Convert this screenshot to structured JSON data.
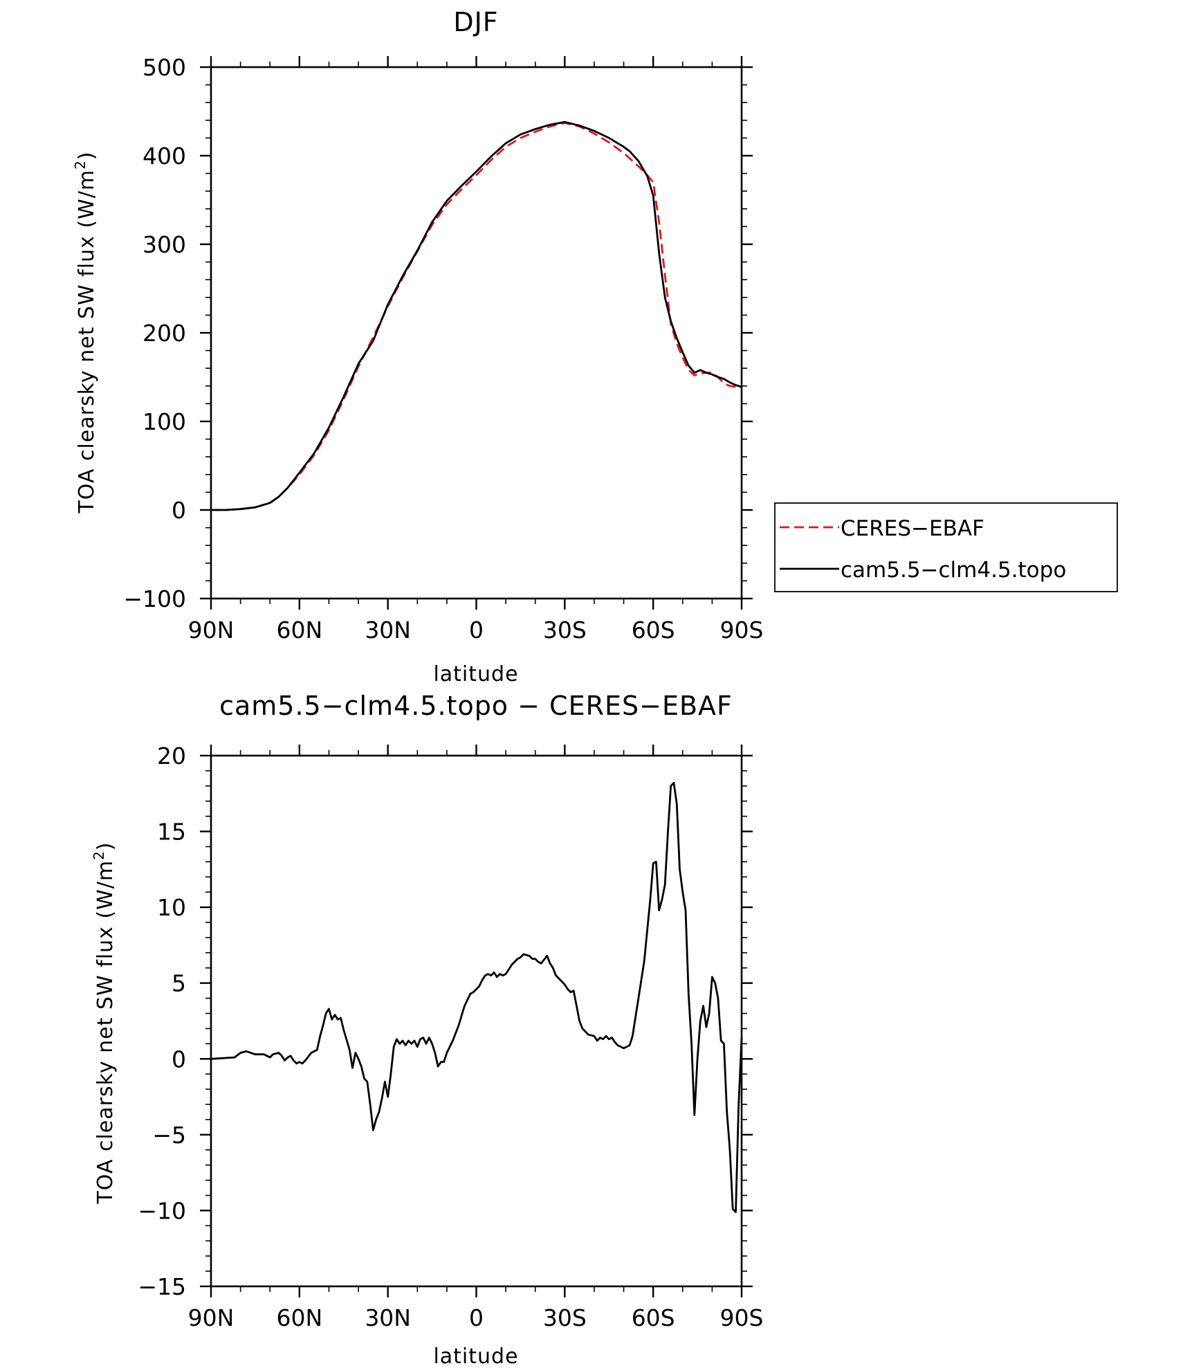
{
  "chart_data": [
    {
      "type": "line",
      "title": "DJF",
      "xlabel": "latitude",
      "ylabel": "TOA clearsky net SW flux (W/m",
      "ylabel_sup": "2",
      "ylabel_close": ")",
      "xlim": [
        90,
        -90
      ],
      "ylim": [
        -100,
        500
      ],
      "x_ticks": [
        90,
        60,
        30,
        0,
        -30,
        -60,
        -90
      ],
      "x_tick_labels": [
        "90N",
        "60N",
        "30N",
        "0",
        "30S",
        "60S",
        "90S"
      ],
      "y_ticks": [
        -100,
        0,
        100,
        200,
        300,
        400,
        500
      ],
      "y_tick_labels": [
        "−100",
        "0",
        "100",
        "200",
        "300",
        "400",
        "500"
      ],
      "legend": {
        "position": "right",
        "entries": [
          "CERES−EBAF",
          "cam5.5−clm4.5.topo"
        ]
      },
      "series": [
        {
          "name": "CERES-EBAF",
          "color": "#e8141c",
          "dash": "dashed",
          "x": [
            90,
            85,
            80,
            75,
            70,
            67,
            64,
            60,
            55,
            50,
            45,
            40,
            35,
            30,
            25,
            20,
            15,
            10,
            5,
            0,
            -5,
            -10,
            -15,
            -20,
            -25,
            -30,
            -35,
            -40,
            -45,
            -50,
            -52,
            -55,
            -58,
            -60,
            -62,
            -64,
            -66,
            -68,
            -70,
            -72,
            -74,
            -76,
            -78,
            -80,
            -82,
            -84,
            -86,
            -88,
            -90
          ],
          "y": [
            0,
            0,
            1,
            3,
            8,
            15,
            25,
            40,
            62,
            90,
            125,
            162,
            195,
            230,
            262,
            292,
            322,
            345,
            362,
            378,
            395,
            410,
            420,
            427,
            433,
            437,
            433,
            425,
            415,
            403,
            397,
            388,
            378,
            370,
            325,
            265,
            210,
            188,
            172,
            158,
            152,
            154,
            155,
            155,
            150,
            143,
            140,
            139,
            139
          ]
        },
        {
          "name": "cam5.5-clm4.5.topo",
          "color": "#000000",
          "dash": "solid",
          "x": [
            90,
            85,
            80,
            75,
            70,
            67,
            64,
            60,
            55,
            50,
            45,
            40,
            35,
            30,
            25,
            20,
            15,
            10,
            5,
            0,
            -5,
            -10,
            -15,
            -20,
            -25,
            -30,
            -35,
            -40,
            -45,
            -50,
            -52,
            -55,
            -58,
            -60,
            -62,
            -64,
            -66,
            -68,
            -70,
            -72,
            -74,
            -76,
            -78,
            -80,
            -82,
            -84,
            -86,
            -88,
            -90
          ],
          "y": [
            0,
            0,
            1,
            3,
            8,
            15,
            25,
            42,
            64,
            93,
            128,
            165,
            191,
            232,
            264,
            293,
            325,
            349,
            366,
            382,
            399,
            414,
            424,
            430,
            435,
            438,
            434,
            428,
            420,
            410,
            405,
            394,
            377,
            355,
            290,
            240,
            213,
            194,
            178,
            163,
            155,
            158,
            155,
            153,
            150,
            148,
            144,
            141,
            139
          ]
        }
      ]
    },
    {
      "type": "line",
      "title": "cam5.5−clm4.5.topo − CERES−EBAF",
      "xlabel": "latitude",
      "ylabel": "TOA clearsky net SW flux (W/m",
      "ylabel_sup": "2",
      "ylabel_close": ")",
      "xlim": [
        90,
        -90
      ],
      "ylim": [
        -15,
        20
      ],
      "x_ticks": [
        90,
        60,
        30,
        0,
        -30,
        -60,
        -90
      ],
      "x_tick_labels": [
        "90N",
        "60N",
        "30N",
        "0",
        "30S",
        "60S",
        "90S"
      ],
      "y_ticks": [
        -15,
        -10,
        -5,
        0,
        5,
        10,
        15,
        20
      ],
      "y_tick_labels": [
        "−15",
        "−10",
        "−5",
        "0",
        "5",
        "10",
        "15",
        "20"
      ],
      "series": [
        {
          "name": "cam5.5-clm4.5.topo - CERES-EBAF",
          "color": "#000000",
          "dash": "solid",
          "x": [
            90,
            82,
            80,
            78,
            75,
            72,
            70,
            69,
            67,
            66,
            65,
            64,
            63,
            62,
            61,
            60,
            59,
            58,
            56,
            54,
            53,
            52,
            51,
            50,
            49,
            48,
            47,
            46,
            45,
            43,
            42,
            41,
            40,
            39,
            38,
            37,
            36,
            35,
            34,
            33,
            32,
            31,
            30,
            29,
            28,
            27,
            26,
            25,
            24,
            23,
            22,
            21,
            20,
            19,
            18,
            17,
            16,
            15,
            14,
            13,
            12,
            11,
            10,
            9,
            8,
            6,
            4,
            2,
            1,
            0,
            -1,
            -2,
            -3,
            -4,
            -5,
            -6,
            -7,
            -8,
            -9,
            -10,
            -11,
            -12,
            -13,
            -14,
            -15,
            -16,
            -18,
            -19,
            -20,
            -21,
            -22,
            -24,
            -25,
            -26,
            -27,
            -28,
            -30,
            -31,
            -32,
            -33,
            -34,
            -35,
            -36,
            -37,
            -38,
            -40,
            -41,
            -42,
            -43,
            -44,
            -45,
            -46,
            -47,
            -48,
            -49,
            -50,
            -52,
            -53,
            -55,
            -57,
            -58,
            -59,
            -60,
            -61,
            -62,
            -63,
            -64,
            -65,
            -66,
            -67,
            -68,
            -69,
            -70,
            -71,
            -72,
            -73,
            -74,
            -75,
            -76,
            -77,
            -78,
            -79,
            -80,
            -81,
            -82,
            -83,
            -84,
            -85,
            -86,
            -87,
            -88,
            -89,
            -90
          ],
          "y": [
            0,
            0.1,
            0.4,
            0.5,
            0.3,
            0.3,
            0.1,
            0.3,
            0.4,
            0.2,
            -0.1,
            0.1,
            0.2,
            -0.1,
            -0.3,
            -0.2,
            -0.3,
            -0.1,
            0.4,
            0.6,
            1.5,
            2.2,
            3.0,
            3.3,
            2.6,
            2.9,
            2.6,
            2.7,
            1.9,
            0.6,
            -0.6,
            0.4,
            0.0,
            -0.5,
            -1.3,
            -1.5,
            -3.0,
            -4.7,
            -4.0,
            -3.5,
            -2.6,
            -1.5,
            -2.5,
            -1.0,
            0.8,
            1.3,
            1.0,
            1.2,
            0.9,
            1.2,
            1.0,
            1.2,
            0.8,
            1.3,
            1.4,
            1.0,
            1.4,
            1.0,
            0.4,
            -0.5,
            -0.2,
            -0.2,
            0.4,
            0.8,
            1.2,
            2.2,
            3.5,
            4.3,
            4.4,
            4.6,
            4.8,
            5.2,
            5.5,
            5.6,
            5.5,
            5.7,
            5.4,
            5.6,
            5.5,
            5.6,
            5.9,
            6.2,
            6.4,
            6.6,
            6.7,
            6.9,
            6.8,
            6.6,
            6.6,
            6.4,
            6.3,
            6.8,
            6.3,
            6.0,
            5.5,
            5.3,
            4.9,
            4.6,
            4.4,
            4.5,
            3.5,
            2.5,
            2.0,
            1.8,
            1.6,
            1.5,
            1.2,
            1.4,
            1.3,
            1.5,
            1.3,
            1.4,
            1.1,
            0.9,
            0.8,
            0.7,
            0.9,
            1.5,
            4.0,
            6.5,
            8.5,
            10.5,
            12.9,
            13.0,
            9.8,
            10.5,
            11.5,
            15.0,
            18.0,
            18.2,
            16.8,
            12.5,
            11.0,
            9.8,
            4.3,
            1.0,
            -3.7,
            0.0,
            2.5,
            3.5,
            2.1,
            3.0,
            5.4,
            5.0,
            4.0,
            1.2,
            1.0,
            -3.5,
            -6.0,
            -9.9,
            -10.1,
            -3.0,
            1.4
          ]
        }
      ]
    }
  ]
}
